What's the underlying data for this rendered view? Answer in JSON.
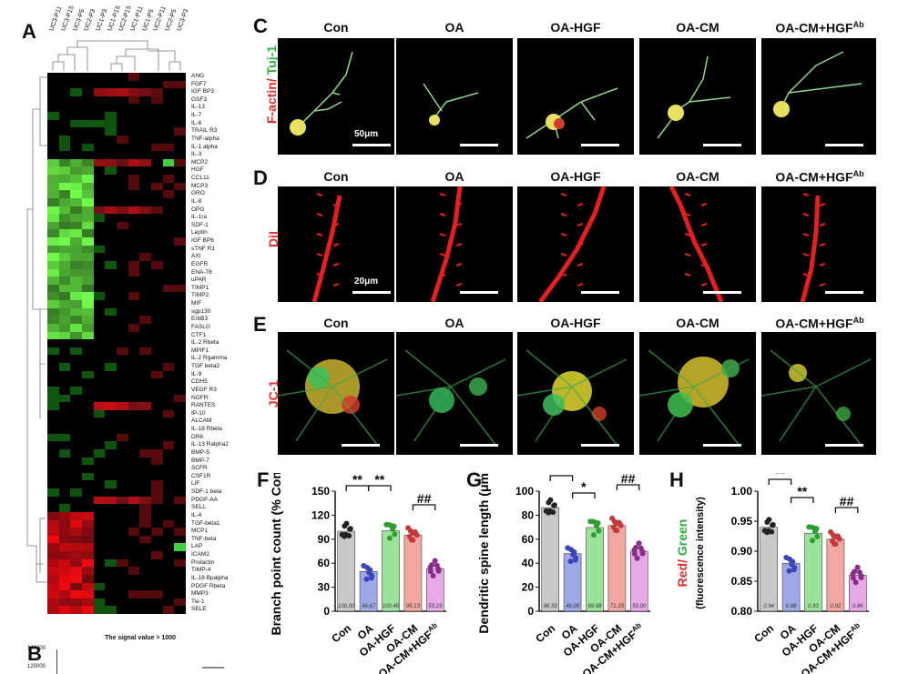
{
  "panels": {
    "A": "A",
    "B": "B",
    "C": "C",
    "D": "D",
    "E": "E",
    "F": "F",
    "G": "G",
    "H": "H"
  },
  "heatmap": {
    "columns": [
      "UC3-P11",
      "UC3-P15",
      "UC3-P5",
      "UC2-P3",
      "UC1-P3",
      "UC1-P15",
      "UC2-P15",
      "UC1-P11",
      "UC1-P5",
      "UC2-P11",
      "UC2-P5",
      "UC3-P3"
    ],
    "rows": [
      "ANG",
      "FGF7",
      "IGF BP3",
      "GSF3",
      "IL-13",
      "IL-7",
      "IL-6",
      "TRAIL R3",
      "TNF-alpha",
      "IL-1 alpha",
      "IL-3",
      "MCP2",
      "HGF",
      "CCL11",
      "MCP3",
      "GRO",
      "IL-8",
      "OPG",
      "IL-1ra",
      "SDF-1",
      "Leptin",
      "IGF BP6",
      "sTNF R1",
      "AXl",
      "EGFR",
      "ENA-78",
      "uPAR",
      "TIMP1",
      "TIMP2",
      "MIF",
      "sgp130",
      "ErbB3",
      "FASLG",
      "CTF1",
      "IL-2 Rbeta",
      "MPIF1",
      "IL-2 Rgamma",
      "TGF beta2",
      "IL-9",
      "CDH5",
      "VEGF R3",
      "NGFR",
      "RANTES",
      "IP-10",
      "ALCAM",
      "IL-18 Rbeta",
      "DR6",
      "IL-13 Ralpha2",
      "BMP-5",
      "BMP-7",
      "SCFR",
      "CSF1R",
      "LIF",
      "SDF-1 beta",
      "PDGF-AA",
      "SELL",
      "IL-4",
      "TGF-beta1",
      "MCP1",
      "TNF-beta",
      "LAP",
      "ICAM2",
      "Prolactin",
      "TIMP-4",
      "IL-18 Bpalpha",
      "PDGF Rbeta",
      "MMP3",
      "Tie-1",
      "SELE"
    ]
  },
  "panel_b": {
    "title": "The signal value > 1000",
    "ticks": [
      "140000",
      "120000"
    ]
  },
  "image_columns": [
    "Con",
    "OA",
    "OA-HGF",
    "OA-CM",
    "OA-CM+HGF"
  ],
  "hgf_superscript": "Ab",
  "row_c": {
    "label_red": "F-actin/",
    "label_green": " Tuj-1",
    "scale": "50μm"
  },
  "row_d": {
    "label": "DiI",
    "scale": "20μm"
  },
  "row_e": {
    "label": "JC-1"
  },
  "colors": {
    "con": "#c8c8c8",
    "oa": "#9fa8e6",
    "oa_hgf": "#9be39b",
    "oa_cm": "#f3a7a2",
    "oa_cm_hgfab": "#e6a8e6",
    "red": "#e03030",
    "green": "#2fae3d"
  },
  "chart_data": [
    {
      "type": "bar",
      "panel": "F",
      "ylabel": "Branch point count (% Con)",
      "categories": [
        "Con",
        "OA",
        "OA-HGF",
        "OA-CM",
        "OA-CM+HGFAb"
      ],
      "values": [
        100.0,
        49.67,
        100.48,
        95.13,
        53.23
      ],
      "value_labels": [
        "100.00",
        "49.67",
        "100.48",
        "95.13",
        "53.23"
      ],
      "ylim": [
        0,
        150
      ],
      "yticks": [
        "0",
        "30",
        "60",
        "90",
        "120",
        "150"
      ],
      "significance": [
        "**",
        "**",
        "##"
      ]
    },
    {
      "type": "bar",
      "panel": "G",
      "ylabel": "Dendritic spine length (μm)",
      "categories": [
        "Con",
        "OA",
        "OA-HGF",
        "OA-CM",
        "OA-CM+HGFAb"
      ],
      "values": [
        86.33,
        48.0,
        69.68,
        71.33,
        50.0
      ],
      "value_labels": [
        "86.33",
        "48.00",
        "69.68",
        "71.33",
        "50.00"
      ],
      "ylim": [
        0,
        100
      ],
      "yticks": [
        "0",
        "20",
        "40",
        "60",
        "80",
        "100"
      ],
      "significance": [
        "**",
        "*",
        "##"
      ]
    },
    {
      "type": "bar",
      "panel": "H",
      "ylabel_red": "Red/",
      "ylabel_green": " Green",
      "ylabel2": "(fluorescence intensity)",
      "categories": [
        "Con",
        "OA",
        "OA-HGF",
        "OA-CM",
        "OA-CM+HGFAb"
      ],
      "values": [
        0.94,
        0.88,
        0.93,
        0.92,
        0.86
      ],
      "value_labels": [
        "0.94",
        "0.88",
        "0.93",
        "0.92",
        "0.86"
      ],
      "ylim": [
        0.8,
        1.0
      ],
      "yticks": [
        "0.80",
        "0.85",
        "0.90",
        "0.95",
        "1.00"
      ],
      "significance": [
        "**",
        "**",
        "##"
      ]
    }
  ]
}
